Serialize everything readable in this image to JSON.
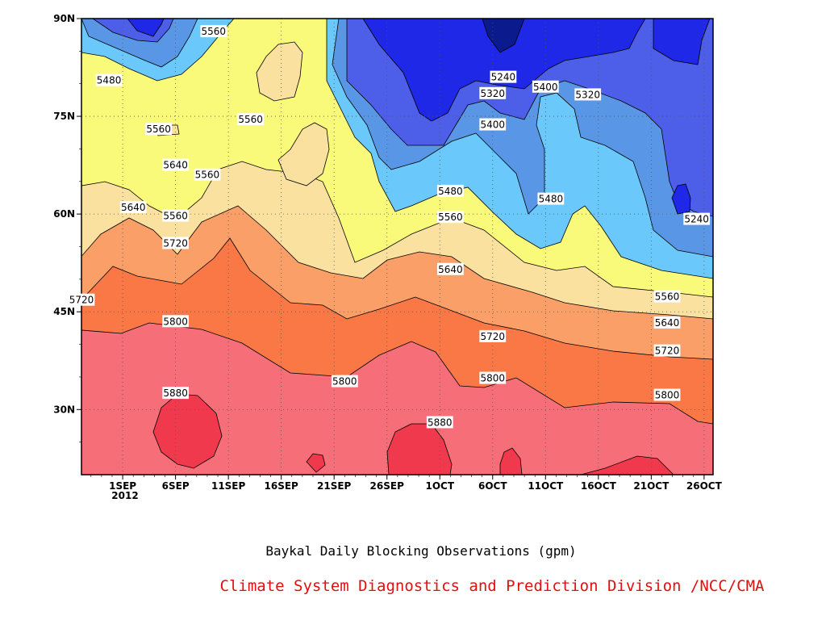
{
  "chart_data": {
    "type": "heatmap",
    "title": "Baykal Daily Blocking Observations (gpm)",
    "credit": "Climate System Diagnostics and Prediction Division /NCC/CMA",
    "year_label": "2012",
    "x_ticks": [
      "1SEP",
      "6SEP",
      "11SEP",
      "16SEP",
      "21SEP",
      "26SEP",
      "1OCT",
      "6OCT",
      "11OCT",
      "16OCT",
      "21OCT",
      "26OCT"
    ],
    "y_ticks": [
      "90N",
      "75N",
      "60N",
      "45N",
      "30N"
    ],
    "ylim": [
      20,
      90
    ],
    "contour_levels": [
      5240,
      5320,
      5400,
      5480,
      5560,
      5640,
      5720,
      5800,
      5880
    ],
    "bands": [
      {
        "range": "<5240",
        "color": "#0b1a8c"
      },
      {
        "range": "5240-5320",
        "color": "#1e28e6"
      },
      {
        "range": "5320-5400",
        "color": "#4d5ee8"
      },
      {
        "range": "5400-5480",
        "color": "#5a96e6"
      },
      {
        "range": "5480-5560",
        "color": "#6ac8fa"
      },
      {
        "range": "5560-5640",
        "color": "#fafa7a"
      },
      {
        "range": "5640-5720",
        "color": "#fae1a0"
      },
      {
        "range": "5720-5800",
        "color": "#fa9f68"
      },
      {
        "range": "5800-5880",
        "color": "#fa7846"
      },
      {
        "range": "5880+",
        "color": "#f56e78"
      },
      {
        "range": "5880 cores",
        "color": "#f0394c"
      }
    ],
    "contour_labels": [
      {
        "text": "5560",
        "day": 8.6,
        "lat": 88.0
      },
      {
        "text": "5480",
        "day": -1.3,
        "lat": 80.5
      },
      {
        "text": "5560",
        "day": 3.4,
        "lat": 73.0
      },
      {
        "text": "5560",
        "day": 12.1,
        "lat": 74.5
      },
      {
        "text": "5560",
        "day": 8.0,
        "lat": 66.0
      },
      {
        "text": "5640",
        "day": 5.0,
        "lat": 67.5
      },
      {
        "text": "5640",
        "day": 1.0,
        "lat": 61.0
      },
      {
        "text": "5560",
        "day": 5.0,
        "lat": 59.7
      },
      {
        "text": "5720",
        "day": 5.0,
        "lat": 55.5
      },
      {
        "text": "5720",
        "day": -3.9,
        "lat": 46.8
      },
      {
        "text": "5800",
        "day": 5.0,
        "lat": 43.5
      },
      {
        "text": "5880",
        "day": 5.0,
        "lat": 32.5
      },
      {
        "text": "5800",
        "day": 21.0,
        "lat": 34.3
      },
      {
        "text": "5880",
        "day": 30.0,
        "lat": 28.0
      },
      {
        "text": "5640",
        "day": 31.0,
        "lat": 51.5
      },
      {
        "text": "5560",
        "day": 31.0,
        "lat": 59.5
      },
      {
        "text": "5480",
        "day": 31.0,
        "lat": 63.5
      },
      {
        "text": "5400",
        "day": 35.0,
        "lat": 73.7
      },
      {
        "text": "5320",
        "day": 35.0,
        "lat": 78.5
      },
      {
        "text": "5240",
        "day": 36.0,
        "lat": 81.0
      },
      {
        "text": "5400",
        "day": 40.0,
        "lat": 79.5
      },
      {
        "text": "5320",
        "day": 44.0,
        "lat": 78.3
      },
      {
        "text": "5480",
        "day": 40.5,
        "lat": 62.3
      },
      {
        "text": "5720",
        "day": 35.0,
        "lat": 41.2
      },
      {
        "text": "5800",
        "day": 35.0,
        "lat": 34.8
      },
      {
        "text": "5240",
        "day": 54.3,
        "lat": 59.2
      },
      {
        "text": "5560",
        "day": 51.5,
        "lat": 47.3
      },
      {
        "text": "5640",
        "day": 51.5,
        "lat": 43.3
      },
      {
        "text": "5720",
        "day": 51.5,
        "lat": 39.0
      },
      {
        "text": "5800",
        "day": 51.5,
        "lat": 32.2
      }
    ]
  }
}
